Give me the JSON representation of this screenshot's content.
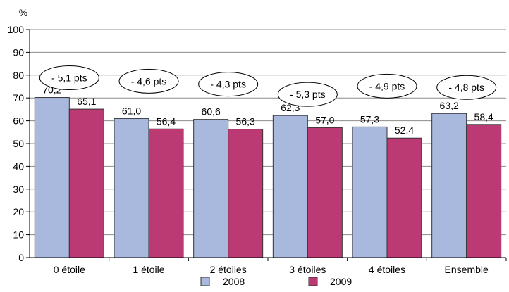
{
  "chart_data": {
    "type": "bar",
    "y_unit": "%",
    "ylim": [
      0,
      100
    ],
    "y_ticks": [
      0,
      10,
      20,
      30,
      40,
      50,
      60,
      70,
      80,
      90,
      100
    ],
    "grid": true,
    "categories": [
      "0 étoile",
      "1 étoile",
      "2 étoiles",
      "3 étoiles",
      "4 étoiles",
      "Ensemble"
    ],
    "series": [
      {
        "name": "2008",
        "values": [
          70.2,
          61.0,
          60.6,
          62.3,
          57.3,
          63.2
        ],
        "labels": [
          "70,2",
          "61,0",
          "60,6",
          "62,3",
          "57,3",
          "63,2"
        ],
        "color": "#a9b9dd"
      },
      {
        "name": "2009",
        "values": [
          65.1,
          56.4,
          56.3,
          57.0,
          52.4,
          58.4
        ],
        "labels": [
          "65,1",
          "56,4",
          "56,3",
          "57,0",
          "52,4",
          "58,4"
        ],
        "color": "#bb3a73"
      }
    ],
    "annotations": [
      "- 5,1 pts",
      "- 4,6 pts",
      "- 4,3 pts",
      "- 5,3 pts",
      "- 4,9 pts",
      "- 4,8 pts"
    ],
    "legend_position": "bottom"
  }
}
